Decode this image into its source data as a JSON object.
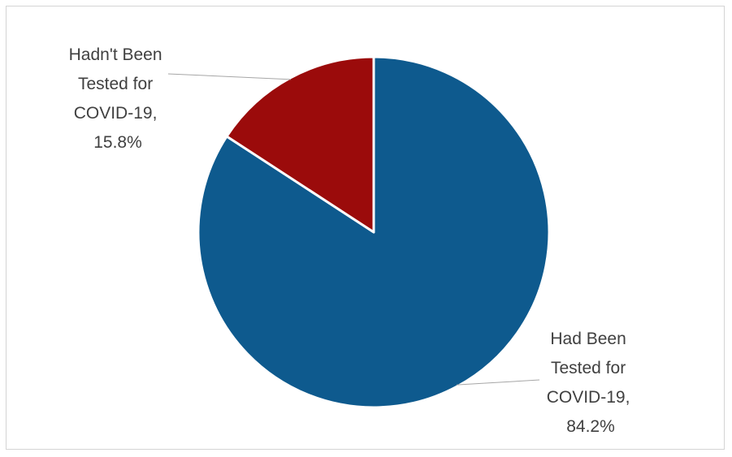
{
  "chart_data": {
    "type": "pie",
    "title": "",
    "start_angle_deg": 0,
    "direction": "clockwise",
    "slices": [
      {
        "label_lines": [
          "Had Been",
          "Tested for",
          "COVID-19,",
          "84.2%"
        ],
        "value": 84.2,
        "color": "#0e5a8e"
      },
      {
        "label_lines": [
          "Hadn't Been",
          "Tested for",
          "COVID-19,",
          "15.8%"
        ],
        "value": 15.8,
        "color": "#9b0b0b"
      }
    ],
    "legend": "none",
    "slice_border_color": "#ffffff"
  }
}
